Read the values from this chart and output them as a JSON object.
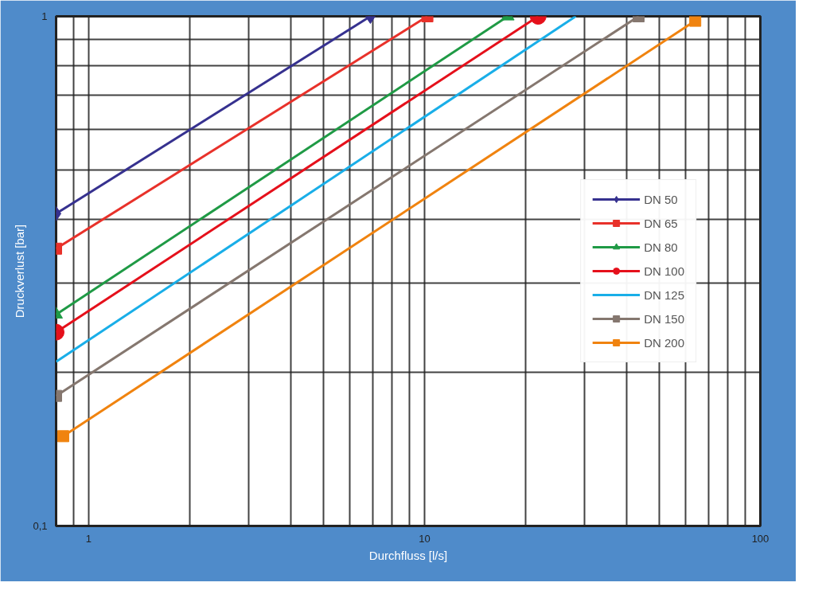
{
  "chart_data": {
    "type": "line",
    "xlabel": "Durchfluss [l/s]",
    "ylabel": "Druckverlust [bar]",
    "log": "xy",
    "grid": true,
    "legend": "center right",
    "xlim": [
      0.8,
      100
    ],
    "ylim": [
      0.1,
      1
    ],
    "xticks": [
      {
        "value": 0.8,
        "label": null
      },
      {
        "value": 0.9,
        "label": null
      },
      1,
      {
        "value": 2,
        "label": null
      },
      {
        "value": 3,
        "label": null
      },
      {
        "value": 4,
        "label": null
      },
      {
        "value": 5,
        "label": null
      },
      {
        "value": 6,
        "label": null
      },
      {
        "value": 7,
        "label": null
      },
      {
        "value": 8,
        "label": null
      },
      {
        "value": 9,
        "label": null
      },
      10,
      {
        "value": 20,
        "label": null
      },
      {
        "value": 30,
        "label": null
      },
      {
        "value": 40,
        "label": null
      },
      {
        "value": 50,
        "label": null
      },
      {
        "value": 60,
        "label": null
      },
      {
        "value": 70,
        "label": null
      },
      {
        "value": 80,
        "label": null
      },
      {
        "value": 90,
        "label": null
      },
      100
    ],
    "yticks": [
      {
        "value": 0.1,
        "label": "0,1"
      },
      {
        "value": 0.2,
        "label": null
      },
      {
        "value": 0.3,
        "label": null
      },
      {
        "value": 0.4,
        "label": null
      },
      {
        "value": 0.5,
        "label": null
      },
      {
        "value": 0.6,
        "label": null
      },
      {
        "value": 0.7,
        "label": null
      },
      {
        "value": 0.8,
        "label": null
      },
      {
        "value": 0.9,
        "label": null
      },
      1
    ],
    "series": [
      {
        "name": "DN 50",
        "color": "#36318f",
        "marker": "diamond",
        "x": [
          0.8,
          6.9
        ],
        "values": [
          0.41,
          1
        ]
      },
      {
        "name": "DN 65",
        "color": "#e8312a",
        "marker": "square",
        "x": [
          0.8,
          10.2
        ],
        "values": [
          0.35,
          1
        ]
      },
      {
        "name": "DN 80",
        "color": "#1f9a45",
        "marker": "triangle",
        "x": [
          0.8,
          17.7
        ],
        "values": [
          0.26,
          1
        ]
      },
      {
        "name": "DN 100",
        "color": "#e5101b",
        "marker": "circle",
        "x": [
          0.8,
          21.8
        ],
        "values": [
          0.24,
          1
        ]
      },
      {
        "name": "DN 125",
        "color": "#19aee8",
        "marker": "none",
        "x": [
          0.8,
          28.2
        ],
        "values": [
          0.21,
          1
        ]
      },
      {
        "name": "DN 150",
        "color": "#85776f",
        "marker": "square",
        "x": [
          0.8,
          43.4
        ],
        "values": [
          0.18,
          1
        ]
      },
      {
        "name": "DN 200",
        "color": "#f0830f",
        "marker": "square",
        "x": [
          0.84,
          64
        ],
        "values": [
          0.15,
          0.98
        ]
      }
    ]
  }
}
